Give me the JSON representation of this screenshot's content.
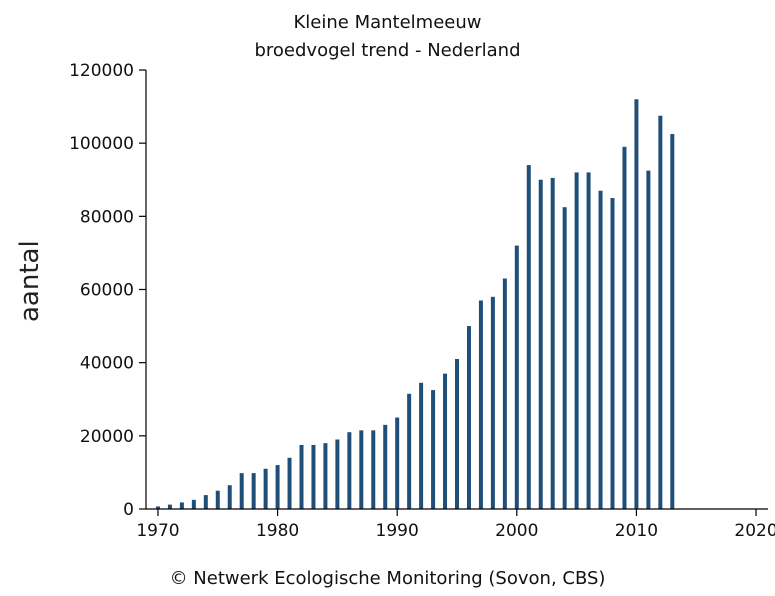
{
  "chart_data": {
    "type": "bar",
    "title": "Kleine Mantelmeeuw",
    "subtitle": "broedvogel trend - Nederland",
    "ylabel": "aantal",
    "xlabel": "",
    "credit": "© Netwerk Ecologische Monitoring (Sovon, CBS)",
    "xlim": [
      1969,
      2021
    ],
    "ylim": [
      0,
      120000
    ],
    "x_ticks": [
      "1970",
      "1980",
      "1990",
      "2000",
      "2010",
      "2020"
    ],
    "y_ticks": [
      "0",
      "20000",
      "40000",
      "60000",
      "80000",
      "100000",
      "120000"
    ],
    "bar_color": "#1f4e79",
    "grid": false,
    "x": [
      1970,
      1971,
      1972,
      1973,
      1974,
      1975,
      1976,
      1977,
      1978,
      1979,
      1980,
      1981,
      1982,
      1983,
      1984,
      1985,
      1986,
      1987,
      1988,
      1989,
      1990,
      1991,
      1992,
      1993,
      1994,
      1995,
      1996,
      1997,
      1998,
      1999,
      2000,
      2001,
      2002,
      2003,
      2004,
      2005,
      2006,
      2007,
      2008,
      2009,
      2010,
      2011,
      2012,
      2013
    ],
    "values": [
      700,
      1200,
      1800,
      2500,
      3800,
      5000,
      6500,
      9800,
      9800,
      11000,
      12000,
      14000,
      17500,
      17500,
      18000,
      19000,
      21000,
      21500,
      21500,
      23000,
      25000,
      31500,
      34500,
      32500,
      37000,
      41000,
      50000,
      57000,
      58000,
      63000,
      72000,
      94000,
      90000,
      90500,
      82500,
      92000,
      92000,
      87000,
      85000,
      99000,
      112000,
      92500,
      107500,
      102500
    ]
  }
}
